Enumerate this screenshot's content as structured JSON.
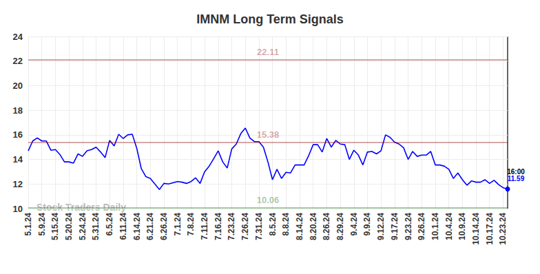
{
  "chart_data": {
    "type": "line",
    "title": "IMNM Long Term Signals",
    "categories": [
      "5.1.24",
      null,
      null,
      "5.9.24",
      null,
      null,
      "5.15.24",
      null,
      null,
      "5.20.24",
      null,
      null,
      "5.24.24",
      null,
      null,
      "5.31.24",
      null,
      null,
      "6.5.24",
      null,
      null,
      "6.11.24",
      null,
      null,
      "6.14.24",
      null,
      null,
      "6.21.24",
      null,
      null,
      "6.26.24",
      null,
      null,
      "7.1.24",
      null,
      null,
      "7.8.24",
      null,
      null,
      "7.11.24",
      null,
      null,
      "7.16.24",
      null,
      null,
      "7.23.24",
      null,
      null,
      "7.26.24",
      null,
      null,
      "7.31.24",
      null,
      null,
      "8.5.24",
      null,
      null,
      "8.8.24",
      null,
      null,
      "8.14.24",
      null,
      null,
      "8.20.24",
      null,
      null,
      "8.26.24",
      null,
      null,
      "8.29.24",
      null,
      null,
      "9.4.24",
      null,
      null,
      "9.9.24",
      null,
      null,
      "9.12.24",
      null,
      null,
      "9.17.24",
      null,
      null,
      "9.23.24",
      null,
      null,
      "9.26.24",
      null,
      null,
      "10.1.24",
      null,
      null,
      "10.4.24",
      null,
      null,
      "10.9.24",
      null,
      null,
      "10.14.24",
      null,
      null,
      "10.17.24",
      null,
      null,
      "10.23.24",
      null
    ],
    "values": [
      14.7,
      15.5,
      15.75,
      15.5,
      15.5,
      14.75,
      14.8,
      14.4,
      13.8,
      13.8,
      13.7,
      14.45,
      14.25,
      14.7,
      14.8,
      15.0,
      14.6,
      14.15,
      15.55,
      15.1,
      16.05,
      15.7,
      16.0,
      16.05,
      14.9,
      13.25,
      12.6,
      12.45,
      12.0,
      11.55,
      12.05,
      12.0,
      12.1,
      12.2,
      12.15,
      12.05,
      12.2,
      12.5,
      12.05,
      13.0,
      13.45,
      14.05,
      14.7,
      13.8,
      13.3,
      14.85,
      15.25,
      16.1,
      16.55,
      15.75,
      15.45,
      15.45,
      15.0,
      13.8,
      12.35,
      13.2,
      12.45,
      12.95,
      12.9,
      13.55,
      13.55,
      13.55,
      14.3,
      15.2,
      15.2,
      14.6,
      15.7,
      15.0,
      15.55,
      15.25,
      15.2,
      14.0,
      14.75,
      14.35,
      13.55,
      14.6,
      14.65,
      14.45,
      14.7,
      16.0,
      15.8,
      15.4,
      15.25,
      14.95,
      14.0,
      14.65,
      14.25,
      14.35,
      14.35,
      14.65,
      13.55,
      13.55,
      13.45,
      13.2,
      12.45,
      12.9,
      12.35,
      11.9,
      12.25,
      12.15,
      12.15,
      12.35,
      12.05,
      12.3,
      11.95,
      11.7,
      11.59
    ],
    "color": "#0000ff",
    "ylim": [
      10,
      24
    ],
    "yticks": [
      10,
      12,
      14,
      16,
      18,
      20,
      22,
      24
    ],
    "grid": true,
    "reference_lines": [
      {
        "value": 22.11,
        "color": "#8b0000"
      },
      {
        "value": 15.38,
        "color": "#8b0000"
      },
      {
        "value": 10.06,
        "color": "#006400"
      }
    ],
    "last_point_annotation": "16:00",
    "watermark": "Stock Traders Daily"
  }
}
